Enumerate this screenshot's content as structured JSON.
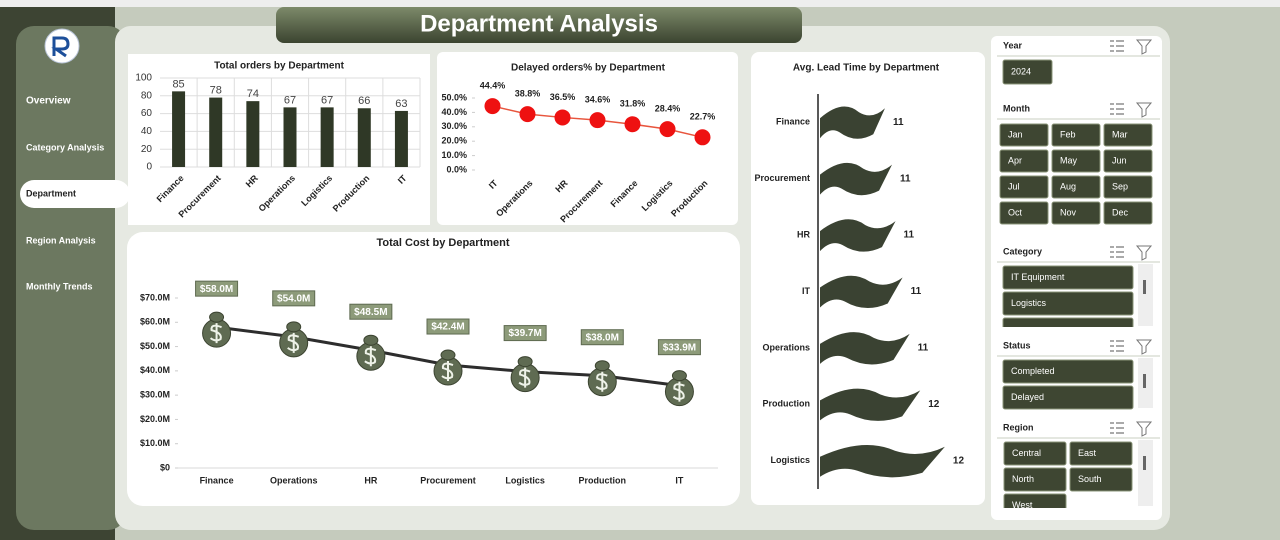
{
  "header": {
    "title": "Department Analysis"
  },
  "nav": {
    "items": [
      "Overview",
      "Category Analysis",
      "Department",
      "Region Analysis",
      "Monthly Trends"
    ],
    "selected_index": 2
  },
  "slicers": [
    {
      "title": "Year",
      "items": [
        "2024"
      ]
    },
    {
      "title": "Month",
      "items": [
        "Jan",
        "Feb",
        "Mar",
        "Apr",
        "May",
        "Jun",
        "Jul",
        "Aug",
        "Sep",
        "Oct",
        "Nov",
        "Dec"
      ]
    },
    {
      "title": "Category",
      "items": [
        "IT Equipment",
        "Logistics"
      ]
    },
    {
      "title": "Status",
      "items": [
        "Completed",
        "Delayed"
      ]
    },
    {
      "title": "Region",
      "items": [
        "Central",
        "East",
        "North",
        "South",
        "West"
      ]
    }
  ],
  "chart_data": [
    {
      "type": "bar",
      "title": "Total orders by Department",
      "categories": [
        "Finance",
        "Procurement",
        "HR",
        "Operations",
        "Logistics",
        "Production",
        "IT"
      ],
      "values": [
        85,
        78,
        74,
        67,
        67,
        66,
        63
      ],
      "color": "#2f3826",
      "ylim": [
        0,
        100
      ],
      "yticks": [
        0,
        20,
        40,
        60,
        80,
        100
      ],
      "grid": true
    },
    {
      "type": "line",
      "title": "Delayed orders% by Department",
      "marker": "circle",
      "categories": [
        "IT",
        "Operations",
        "HR",
        "Procurement",
        "Finance",
        "Logistics",
        "Production"
      ],
      "values": [
        44.4,
        38.8,
        36.5,
        34.6,
        31.8,
        28.4,
        22.7
      ],
      "value_labels": [
        "44.4%",
        "38.8%",
        "36.5%",
        "34.6%",
        "31.8%",
        "28.4%",
        "22.7%"
      ],
      "color": "#ee1111",
      "line_color": "#e8553d",
      "ylim": [
        0,
        50
      ],
      "yticks": [
        {
          "value": 0,
          "label": "0.0%"
        },
        {
          "value": 10,
          "label": "10.0%"
        },
        {
          "value": 20,
          "label": "20.0%"
        },
        {
          "value": 30,
          "label": "30.0%"
        },
        {
          "value": 40,
          "label": "40.0%"
        },
        {
          "value": 50,
          "label": "50.0%"
        }
      ]
    },
    {
      "type": "line",
      "title": "Total Cost by Department",
      "marker": "money-bag",
      "categories": [
        "Finance",
        "Operations",
        "HR",
        "Procurement",
        "Logistics",
        "Production",
        "IT"
      ],
      "values": [
        58000000,
        54000000,
        48500000,
        42400000,
        39700000,
        38000000,
        33900000
      ],
      "value_labels": [
        "$58.0M",
        "$54.0M",
        "$48.5M",
        "$42.4M",
        "$39.7M",
        "$38.0M",
        "$33.9M"
      ],
      "color": "#5f6b52",
      "line_color": "#2d2d2d",
      "ylim": [
        0,
        70000000
      ],
      "yticks": [
        {
          "value": 0,
          "label": "$0"
        },
        {
          "value": 10000000,
          "label": "$10.0M"
        },
        {
          "value": 20000000,
          "label": "$20.0M"
        },
        {
          "value": 30000000,
          "label": "$30.0M"
        },
        {
          "value": 40000000,
          "label": "$40.0M"
        },
        {
          "value": 50000000,
          "label": "$50.0M"
        },
        {
          "value": 60000000,
          "label": "$60.0M"
        },
        {
          "value": 70000000,
          "label": "$70.0M"
        }
      ]
    },
    {
      "type": "barh",
      "title": "Avg. Lead Time by Department",
      "categories": [
        "Finance",
        "Procurement",
        "HR",
        "IT",
        "Operations",
        "Production",
        "Logistics"
      ],
      "values": [
        10.6,
        10.8,
        10.9,
        11.1,
        11.3,
        11.6,
        12.3
      ],
      "value_labels": [
        "11",
        "11",
        "11",
        "11",
        "11",
        "12",
        "12"
      ],
      "color": "#3a4232",
      "xlim": [
        8.7,
        12.7
      ]
    }
  ]
}
